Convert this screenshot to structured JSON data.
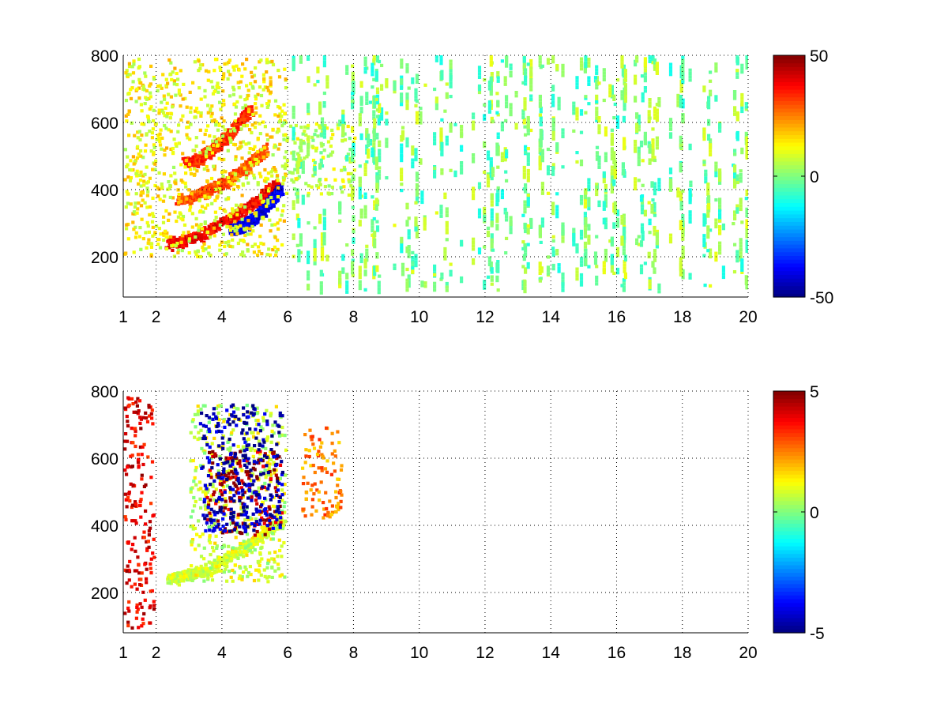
{
  "figure": {
    "background": "#ffffff"
  },
  "chart_data": [
    {
      "type": "heatmap",
      "title": "",
      "xlabel": "",
      "ylabel": "",
      "xlim": [
        1,
        20
      ],
      "ylim": [
        80,
        800
      ],
      "x_ticks": [
        1,
        2,
        4,
        6,
        8,
        10,
        12,
        14,
        16,
        18,
        20
      ],
      "x_tick_labels": [
        "1",
        "2",
        "4",
        "6",
        "8",
        "10",
        "12",
        "14",
        "16",
        "18",
        "20"
      ],
      "y_ticks": [
        200,
        400,
        600,
        800
      ],
      "y_tick_labels": [
        "200",
        "400",
        "600",
        "800"
      ],
      "grid": true,
      "colormap": "jet",
      "clim": [
        -50,
        50
      ],
      "colorbar": {
        "placement": "right",
        "ticks": [
          -50,
          0,
          50
        ],
        "tick_labels": [
          "-50",
          "0",
          "50"
        ]
      },
      "features": [
        {
          "shape": "band",
          "from": [
            2.3,
            240
          ],
          "to": [
            5.6,
            420
          ],
          "value": 38
        },
        {
          "shape": "band",
          "from": [
            2.6,
            370
          ],
          "to": [
            5.3,
            520
          ],
          "value": 30
        },
        {
          "shape": "band",
          "from": [
            2.8,
            480
          ],
          "to": [
            4.8,
            640
          ],
          "value": 34
        },
        {
          "shape": "band",
          "from": [
            4.2,
            280
          ],
          "to": [
            5.7,
            400
          ],
          "value": -40
        },
        {
          "shape": "patch",
          "x": [
            1.0,
            5.9
          ],
          "y": [
            200,
            790
          ],
          "value": 12
        },
        {
          "shape": "patch",
          "x": [
            5.8,
            8.0
          ],
          "y": [
            380,
            600
          ],
          "value": 6
        },
        {
          "shape": "scatter",
          "x": [
            6.0,
            20.0
          ],
          "y": [
            90,
            790
          ],
          "value": 0
        }
      ]
    },
    {
      "type": "heatmap",
      "title": "",
      "xlabel": "",
      "ylabel": "",
      "xlim": [
        1,
        20
      ],
      "ylim": [
        80,
        800
      ],
      "x_ticks": [
        1,
        2,
        4,
        6,
        8,
        10,
        12,
        14,
        16,
        18,
        20
      ],
      "x_tick_labels": [
        "1",
        "2",
        "4",
        "6",
        "8",
        "10",
        "12",
        "14",
        "16",
        "18",
        "20"
      ],
      "y_ticks": [
        200,
        400,
        600,
        800
      ],
      "y_tick_labels": [
        "200",
        "400",
        "600",
        "800"
      ],
      "grid": true,
      "colormap": "jet",
      "clim": [
        -5,
        5
      ],
      "colorbar": {
        "placement": "right",
        "ticks": [
          -5,
          0,
          5
        ],
        "tick_labels": [
          "-5",
          "0",
          "5"
        ]
      },
      "features": [
        {
          "shape": "band",
          "from": [
            2.3,
            240
          ],
          "to": [
            5.8,
            420
          ],
          "value": 0.8
        },
        {
          "shape": "patch",
          "x": [
            3.0,
            5.9
          ],
          "y": [
            230,
            760
          ],
          "value": 0.8
        },
        {
          "shape": "patch",
          "x": [
            3.5,
            5.8
          ],
          "y": [
            370,
            620
          ],
          "value": 4.5
        },
        {
          "shape": "patch",
          "x": [
            3.3,
            5.8
          ],
          "y": [
            380,
            760
          ],
          "value": -4.5
        },
        {
          "shape": "patch",
          "x": [
            6.4,
            7.6
          ],
          "y": [
            420,
            690
          ],
          "value": 2.5
        },
        {
          "shape": "patch",
          "x": [
            1.0,
            1.9
          ],
          "y": [
            90,
            780
          ],
          "value": 4.0
        }
      ]
    }
  ]
}
